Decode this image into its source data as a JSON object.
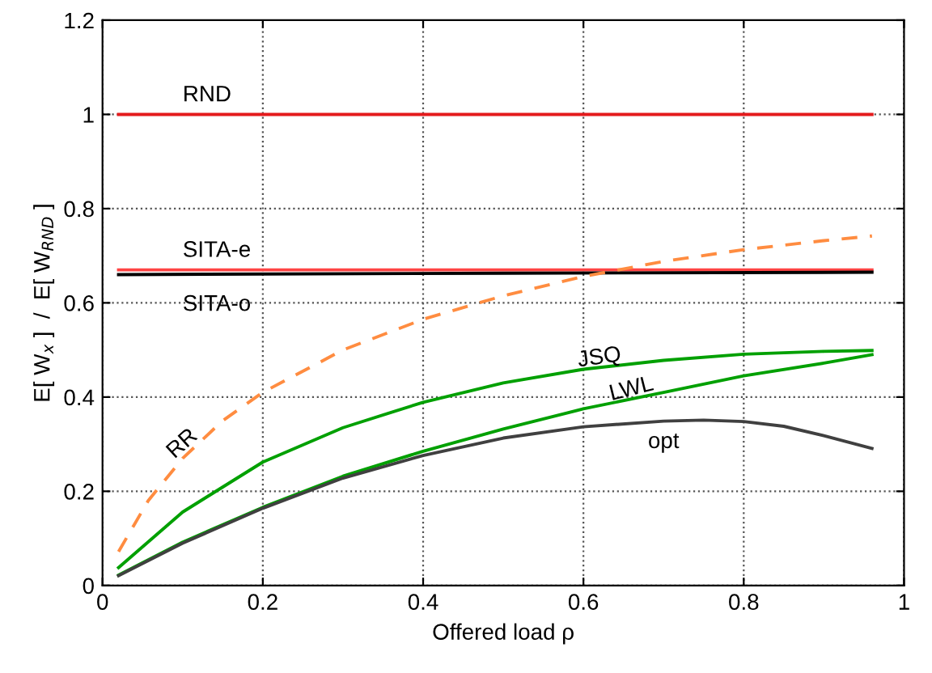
{
  "chart_data": {
    "type": "line",
    "xlabel": "Offered load ρ",
    "ylabel": "E[ W$_{x}$ ]  /  E[ W$_{RND}$ ]",
    "xlim": [
      0,
      1
    ],
    "xticks": [
      0,
      0.2,
      0.4,
      0.6,
      0.8,
      1
    ],
    "ylim": [
      0,
      1.2
    ],
    "yticks": [
      0,
      0.2,
      0.4,
      0.6,
      0.8,
      1,
      1.2
    ],
    "grid": true,
    "legend": false,
    "line_style": "solid",
    "series": [
      {
        "name": "RND",
        "color": "#e41a1c",
        "x": [
          0.02,
          0.96
        ],
        "values": [
          1.0,
          1.0
        ]
      },
      {
        "name": "SITA-e",
        "color": "#ff4444",
        "x": [
          0.02,
          0.96
        ],
        "values": [
          0.67,
          0.67
        ]
      },
      {
        "name": "SITA-o",
        "color": "#000000",
        "x": [
          0.02,
          0.5,
          0.96
        ],
        "values": [
          0.66,
          0.663,
          0.665
        ]
      },
      {
        "name": "RR",
        "color": "#ff8c40",
        "line_style": "dashed",
        "x": [
          0.02,
          0.057,
          0.1,
          0.15,
          0.2,
          0.3,
          0.4,
          0.5,
          0.6,
          0.7,
          0.8,
          0.9,
          0.96
        ],
        "values": [
          0.072,
          0.18,
          0.27,
          0.35,
          0.41,
          0.5,
          0.565,
          0.615,
          0.656,
          0.688,
          0.713,
          0.732,
          0.742
        ]
      },
      {
        "name": "JSQ",
        "color": "#00a000",
        "x": [
          0.02,
          0.1,
          0.2,
          0.3,
          0.4,
          0.5,
          0.6,
          0.7,
          0.8,
          0.9,
          0.96
        ],
        "values": [
          0.038,
          0.156,
          0.262,
          0.335,
          0.389,
          0.43,
          0.459,
          0.478,
          0.491,
          0.497,
          0.499
        ]
      },
      {
        "name": "LWL",
        "color": "#00a000",
        "x": [
          0.02,
          0.1,
          0.2,
          0.3,
          0.4,
          0.5,
          0.6,
          0.7,
          0.8,
          0.9,
          0.96
        ],
        "values": [
          0.022,
          0.092,
          0.166,
          0.232,
          0.285,
          0.332,
          0.375,
          0.41,
          0.445,
          0.472,
          0.49
        ]
      },
      {
        "name": "opt",
        "color": "#404040",
        "x": [
          0.02,
          0.1,
          0.2,
          0.3,
          0.4,
          0.5,
          0.6,
          0.7,
          0.75,
          0.8,
          0.85,
          0.9,
          0.96
        ],
        "values": [
          0.021,
          0.09,
          0.164,
          0.228,
          0.276,
          0.313,
          0.337,
          0.349,
          0.351,
          0.348,
          0.338,
          0.318,
          0.291
        ]
      }
    ]
  }
}
